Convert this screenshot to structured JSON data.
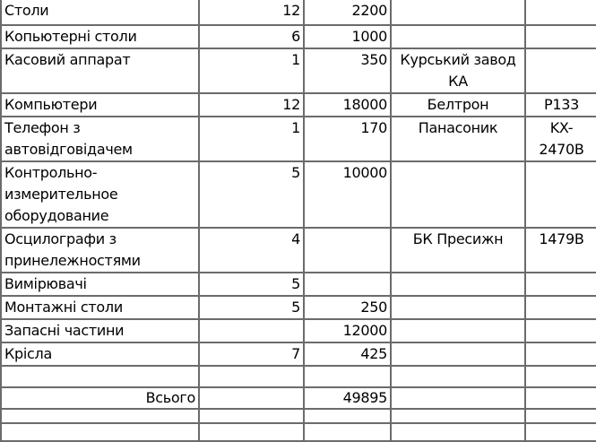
{
  "table": {
    "rows": [
      {
        "name": "Столи",
        "qty": "12",
        "price": "2200",
        "maker": "",
        "model": ""
      },
      {
        "name": "Копьютерні столи",
        "qty": "6",
        "price": "1000",
        "maker": "",
        "model": ""
      },
      {
        "name": "Касовий аппарат",
        "qty": "1",
        "price": "350",
        "maker": "Курський завод КА",
        "model": ""
      },
      {
        "name": "Компьютери",
        "qty": "12",
        "price": "18000",
        "maker": "Белтрон",
        "model": "P133"
      },
      {
        "name": "Телефон з автовідговідачем",
        "qty": "1",
        "price": "170",
        "maker": "Панасоник",
        "model": "KX-2470B"
      },
      {
        "name": "Контрольно-измерительное оборудование",
        "qty": "5",
        "price": "10000",
        "maker": "",
        "model": ""
      },
      {
        "name": "Осцилографи з принележностями",
        "qty": "4",
        "price": "",
        "maker": "БК Пресижн",
        "model": "1479B"
      },
      {
        "name": "Вимірювачі",
        "qty": "5",
        "price": "",
        "maker": "",
        "model": ""
      },
      {
        "name": "Монтажні столи",
        "qty": "5",
        "price": "250",
        "maker": "",
        "model": ""
      },
      {
        "name": "Запасні частини",
        "qty": "",
        "price": "12000",
        "maker": "",
        "model": ""
      },
      {
        "name": "Крісла",
        "qty": "7",
        "price": "425",
        "maker": "",
        "model": ""
      }
    ],
    "total_label": "Всього",
    "total_value": "49895"
  }
}
